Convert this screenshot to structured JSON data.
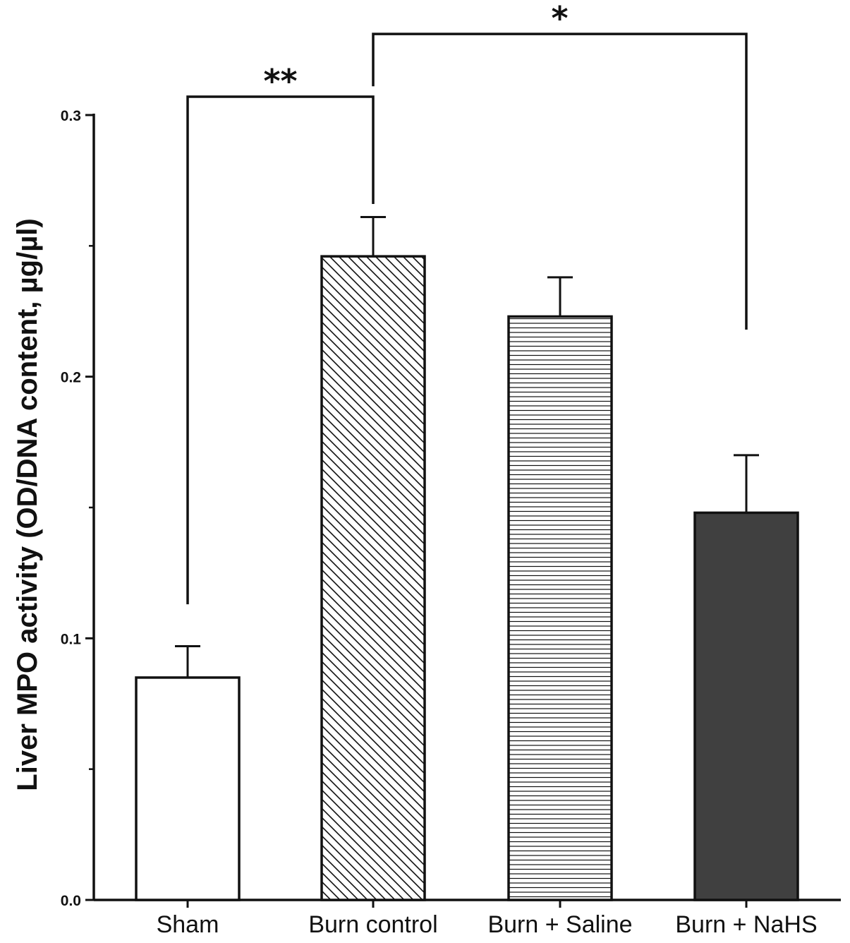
{
  "chart_data": {
    "type": "bar",
    "title": "",
    "xlabel": "",
    "ylabel": "Liver MPO activity (OD/DNA content, µg/µl)",
    "ylim": [
      0,
      0.3
    ],
    "yticks": [
      {
        "value": 0.0,
        "label": "0.0"
      },
      {
        "value": 0.1,
        "label": "0.1"
      },
      {
        "value": 0.2,
        "label": "0.2"
      },
      {
        "value": 0.3,
        "label": "0.3"
      }
    ],
    "minor_ticks": [
      0.05,
      0.15,
      0.25
    ],
    "categories": [
      "Sham",
      "Burn control",
      "Burn + Saline",
      "Burn + NaHS"
    ],
    "values": [
      0.085,
      0.246,
      0.223,
      0.148
    ],
    "errors": [
      0.012,
      0.015,
      0.015,
      0.022
    ],
    "fills": [
      {
        "pattern": "none",
        "color": "#ffffff"
      },
      {
        "pattern": "diagonal-hatch",
        "color": "#ffffff"
      },
      {
        "pattern": "horizontal-lines",
        "color": "#ffffff"
      },
      {
        "pattern": "solid",
        "color": "#404040"
      }
    ],
    "significance": [
      {
        "from": 0,
        "to": 1,
        "label": "**",
        "level": 0.307,
        "left_drop": 0.113,
        "right_drop": 0.266
      },
      {
        "from": 1,
        "to": 3,
        "label": "*",
        "level": 0.331,
        "left_drop": 0.311,
        "right_drop": 0.218
      }
    ],
    "grid": false,
    "legend": "none"
  }
}
